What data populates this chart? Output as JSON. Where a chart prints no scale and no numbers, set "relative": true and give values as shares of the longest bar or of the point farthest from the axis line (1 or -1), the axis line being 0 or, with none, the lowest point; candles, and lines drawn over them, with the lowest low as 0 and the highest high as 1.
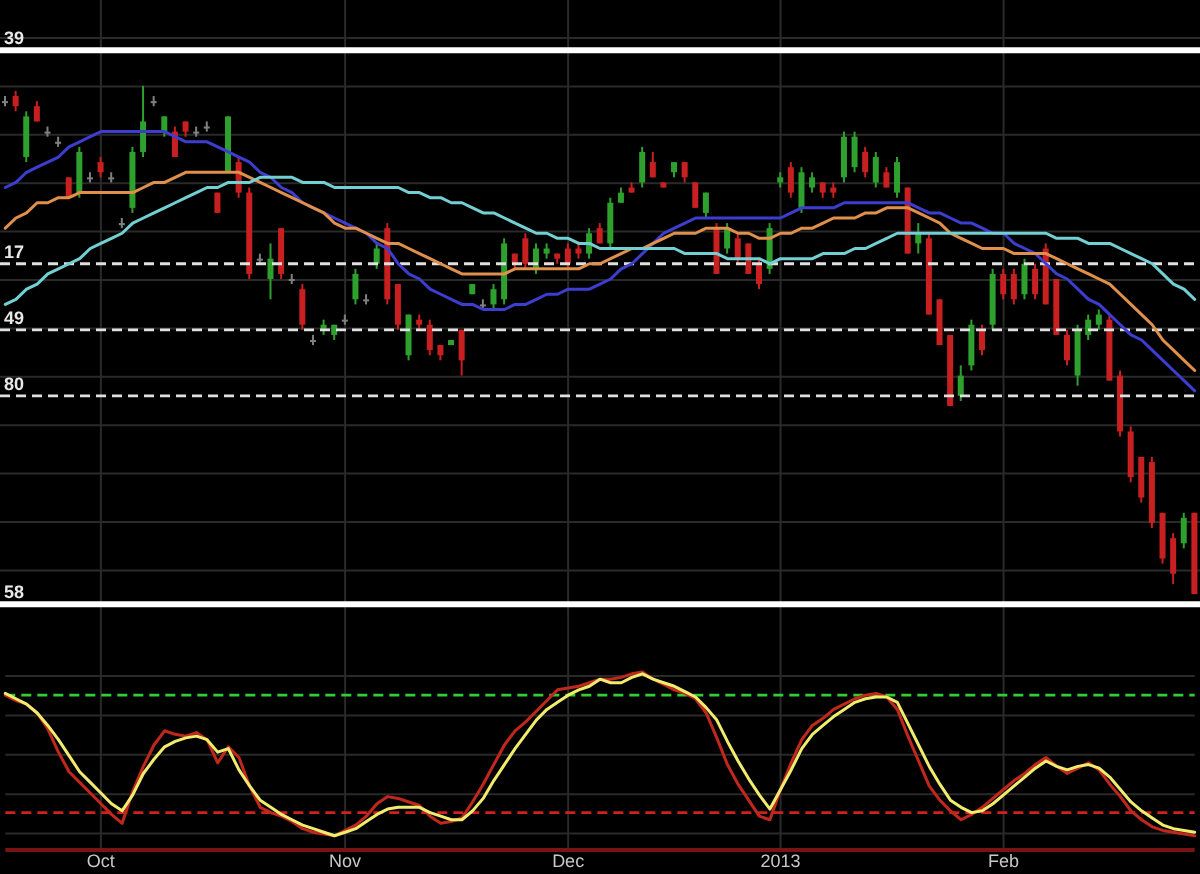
{
  "chart_data": [
    {
      "type": "candlestick",
      "relative": true,
      "grid": true,
      "categories": [
        null,
        null,
        null,
        null,
        null,
        null,
        null,
        null,
        null,
        null,
        null,
        null,
        null,
        null,
        null,
        null,
        null,
        null,
        null,
        null,
        null,
        null,
        null,
        null,
        null,
        null,
        null,
        null,
        null,
        null,
        null,
        null,
        null,
        null,
        null,
        null,
        null,
        null,
        null,
        null,
        null,
        null,
        null,
        null,
        null,
        null,
        null,
        null,
        null,
        null,
        null,
        null,
        null,
        null,
        null,
        null,
        null,
        null,
        null,
        null,
        null,
        null,
        null,
        null,
        null,
        null,
        null,
        null,
        null,
        null,
        null,
        null,
        null,
        null,
        null,
        null,
        null,
        null,
        null,
        null,
        null,
        null,
        null,
        null,
        null,
        null,
        null,
        null,
        null,
        null,
        null,
        null,
        null,
        null,
        null,
        null,
        null,
        null,
        null,
        null,
        null,
        null,
        null,
        null,
        null,
        null,
        null,
        null,
        null,
        null,
        null,
        null,
        null
      ],
      "ohlc": [
        [
          0.97,
          0.98,
          0.96,
          0.97
        ],
        [
          0.98,
          0.99,
          0.95,
          0.96
        ],
        [
          0.86,
          0.95,
          0.85,
          0.94
        ],
        [
          0.96,
          0.97,
          0.93,
          0.93
        ],
        [
          0.91,
          0.92,
          0.9,
          0.91
        ],
        [
          0.89,
          0.9,
          0.88,
          0.89
        ],
        [
          0.82,
          0.82,
          0.78,
          0.78
        ],
        [
          0.79,
          0.88,
          0.78,
          0.87
        ],
        [
          0.82,
          0.83,
          0.81,
          0.82
        ],
        [
          0.85,
          0.86,
          0.82,
          0.83
        ],
        [
          0.82,
          0.83,
          0.81,
          0.82
        ],
        [
          0.73,
          0.74,
          0.72,
          0.73
        ],
        [
          0.76,
          0.88,
          0.75,
          0.87
        ],
        [
          0.87,
          1,
          0.86,
          0.93
        ],
        [
          0.97,
          0.98,
          0.96,
          0.97
        ],
        [
          0.91,
          0.94,
          0.9,
          0.94
        ],
        [
          0.91,
          0.92,
          0.86,
          0.86
        ],
        [
          0.93,
          0.93,
          0.9,
          0.91
        ],
        [
          0.91,
          0.92,
          0.9,
          0.91
        ],
        [
          0.92,
          0.93,
          0.91,
          0.92
        ],
        [
          0.79,
          0.79,
          0.75,
          0.75
        ],
        [
          0.83,
          0.94,
          0.83,
          0.94
        ],
        [
          0.85,
          0.86,
          0.78,
          0.79
        ],
        [
          0.79,
          0.8,
          0.62,
          0.63
        ],
        [
          0.66,
          0.67,
          0.65,
          0.66
        ],
        [
          0.62,
          0.69,
          0.58,
          0.66
        ],
        [
          0.72,
          0.72,
          0.62,
          0.63
        ],
        [
          0.62,
          0.63,
          0.61,
          0.62
        ],
        [
          0.6,
          0.61,
          0.52,
          0.53
        ],
        [
          0.5,
          0.51,
          0.49,
          0.5
        ],
        [
          0.52,
          0.54,
          0.51,
          0.53
        ],
        [
          0.51,
          0.53,
          0.5,
          0.53
        ],
        [
          0.54,
          0.55,
          0.53,
          0.54
        ],
        [
          0.58,
          0.64,
          0.57,
          0.63
        ],
        [
          0.58,
          0.59,
          0.57,
          0.58
        ],
        [
          0.65,
          0.69,
          0.64,
          0.68
        ],
        [
          0.72,
          0.73,
          0.57,
          0.58
        ],
        [
          0.61,
          0.61,
          0.52,
          0.53
        ],
        [
          0.47,
          0.55,
          0.46,
          0.55
        ],
        [
          0.54,
          0.55,
          0.52,
          0.53
        ],
        [
          0.53,
          0.54,
          0.47,
          0.48
        ],
        [
          0.49,
          0.49,
          0.46,
          0.47
        ],
        [
          0.49,
          0.5,
          0.49,
          0.5
        ],
        [
          0.52,
          0.52,
          0.43,
          0.46
        ],
        [
          0.59,
          0.61,
          0.59,
          0.61
        ],
        [
          0.57,
          0.58,
          0.56,
          0.57
        ],
        [
          0.57,
          0.61,
          0.56,
          0.6
        ],
        [
          0.58,
          0.7,
          0.57,
          0.69
        ],
        [
          0.67,
          0.67,
          0.64,
          0.65
        ],
        [
          0.7,
          0.71,
          0.64,
          0.65
        ],
        [
          0.64,
          0.69,
          0.63,
          0.68
        ],
        [
          0.67,
          0.69,
          0.66,
          0.68
        ],
        [
          0.67,
          0.67,
          0.65,
          0.66
        ],
        [
          0.68,
          0.69,
          0.64,
          0.65
        ],
        [
          0.68,
          0.69,
          0.66,
          0.67
        ],
        [
          0.67,
          0.72,
          0.66,
          0.71
        ],
        [
          0.72,
          0.73,
          0.69,
          0.69
        ],
        [
          0.69,
          0.78,
          0.68,
          0.77
        ],
        [
          0.77,
          0.8,
          0.77,
          0.79
        ],
        [
          0.8,
          0.81,
          0.79,
          0.79
        ],
        [
          0.81,
          0.88,
          0.8,
          0.87
        ],
        [
          0.85,
          0.87,
          0.82,
          0.82
        ],
        [
          0.81,
          0.81,
          0.8,
          0.8
        ],
        [
          0.83,
          0.85,
          0.82,
          0.85
        ],
        [
          0.85,
          0.85,
          0.81,
          0.82
        ],
        [
          0.81,
          0.81,
          0.76,
          0.76
        ],
        [
          0.75,
          0.79,
          0.74,
          0.79
        ],
        [
          0.72,
          0.73,
          0.63,
          0.63
        ],
        [
          0.68,
          0.73,
          0.67,
          0.72
        ],
        [
          0.7,
          0.71,
          0.65,
          0.66
        ],
        [
          0.69,
          0.69,
          0.63,
          0.63
        ],
        [
          0.65,
          0.66,
          0.6,
          0.61
        ],
        [
          0.64,
          0.73,
          0.63,
          0.72
        ],
        [
          0.81,
          0.83,
          0.8,
          0.82
        ],
        [
          0.84,
          0.85,
          0.78,
          0.79
        ],
        [
          0.76,
          0.84,
          0.75,
          0.83
        ],
        [
          0.8,
          0.83,
          0.79,
          0.82
        ],
        [
          0.81,
          0.81,
          0.78,
          0.79
        ],
        [
          0.8,
          0.81,
          0.78,
          0.79
        ],
        [
          0.82,
          0.91,
          0.81,
          0.9
        ],
        [
          0.84,
          0.91,
          0.83,
          0.9
        ],
        [
          0.87,
          0.88,
          0.82,
          0.83
        ],
        [
          0.81,
          0.87,
          0.8,
          0.86
        ],
        [
          0.83,
          0.84,
          0.8,
          0.8
        ],
        [
          0.79,
          0.86,
          0.78,
          0.85
        ],
        [
          0.8,
          0.8,
          0.67,
          0.67
        ],
        [
          0.69,
          0.73,
          0.67,
          0.71
        ],
        [
          0.7,
          0.71,
          0.55,
          0.55
        ],
        [
          0.58,
          0.58,
          0.49,
          0.49
        ],
        [
          0.51,
          0.51,
          0.37,
          0.37
        ],
        [
          0.39,
          0.45,
          0.38,
          0.43
        ],
        [
          0.45,
          0.54,
          0.44,
          0.53
        ],
        [
          0.52,
          0.53,
          0.47,
          0.48
        ],
        [
          0.53,
          0.64,
          0.52,
          0.63
        ],
        [
          0.63,
          0.64,
          0.58,
          0.59
        ],
        [
          0.63,
          0.64,
          0.57,
          0.58
        ],
        [
          0.59,
          0.66,
          0.58,
          0.65
        ],
        [
          0.64,
          0.65,
          0.58,
          0.59
        ],
        [
          0.68,
          0.69,
          0.57,
          0.57
        ],
        [
          0.62,
          0.62,
          0.51,
          0.51
        ],
        [
          0.51,
          0.52,
          0.45,
          0.46
        ],
        [
          0.43,
          0.53,
          0.41,
          0.52
        ],
        [
          0.51,
          0.55,
          0.5,
          0.54
        ],
        [
          0.53,
          0.56,
          0.52,
          0.55
        ],
        [
          0.54,
          0.55,
          0.42,
          0.42
        ],
        [
          0.43,
          0.44,
          0.31,
          0.32
        ],
        [
          0.32,
          0.33,
          0.22,
          0.23
        ],
        [
          0.27,
          0.27,
          0.18,
          0.19
        ],
        [
          0.26,
          0.27,
          0.13,
          0.14
        ],
        [
          0.16,
          0.16,
          0.06,
          0.07
        ],
        [
          0.11,
          0.12,
          0.02,
          0.04
        ],
        [
          0.1,
          0.16,
          0.09,
          0.15
        ],
        [
          0.16,
          0.16,
          0,
          0
        ]
      ],
      "colors": [
        "#808080",
        "#c82020",
        "#2ea02e",
        "#c82020",
        "#808080",
        "#808080",
        "#c82020",
        "#2ea02e",
        "#808080",
        "#c82020",
        "#808080",
        "#808080",
        "#2ea02e",
        "#2ea02e",
        "#808080",
        "#2ea02e",
        "#c82020",
        "#c82020",
        "#808080",
        "#808080",
        "#c82020",
        "#2ea02e",
        "#c82020",
        "#c82020",
        "#808080",
        "#2ea02e",
        "#c82020",
        "#808080",
        "#c82020",
        "#808080",
        "#2ea02e",
        "#2ea02e",
        "#808080",
        "#2ea02e",
        "#808080",
        "#2ea02e",
        "#c82020",
        "#c82020",
        "#2ea02e",
        "#c82020",
        "#c82020",
        "#c82020",
        "#2ea02e",
        "#c82020",
        "#2ea02e",
        "#808080",
        "#2ea02e",
        "#2ea02e",
        "#c82020",
        "#c82020",
        "#2ea02e",
        "#2ea02e",
        "#c82020",
        "#c82020",
        "#c82020",
        "#2ea02e",
        "#c82020",
        "#2ea02e",
        "#2ea02e",
        "#c82020",
        "#2ea02e",
        "#c82020",
        "#c82020",
        "#2ea02e",
        "#c82020",
        "#c82020",
        "#2ea02e",
        "#c82020",
        "#2ea02e",
        "#c82020",
        "#c82020",
        "#c82020",
        "#2ea02e",
        "#2ea02e",
        "#c82020",
        "#2ea02e",
        "#2ea02e",
        "#c82020",
        "#c82020",
        "#2ea02e",
        "#2ea02e",
        "#c82020",
        "#2ea02e",
        "#c82020",
        "#2ea02e",
        "#c82020",
        "#2ea02e",
        "#c82020",
        "#c82020",
        "#c82020",
        "#2ea02e",
        "#2ea02e",
        "#c82020",
        "#2ea02e",
        "#c82020",
        "#c82020",
        "#2ea02e",
        "#c82020",
        "#c82020",
        "#c82020",
        "#c82020",
        "#2ea02e",
        "#2ea02e",
        "#2ea02e",
        "#c82020",
        "#c82020",
        "#c82020",
        "#c82020",
        "#c82020",
        "#c82020",
        "#c82020",
        "#2ea02e",
        "#c82020"
      ],
      "series": [
        {
          "type": "line",
          "color": "#3d3dd0",
          "values": [
            0.8,
            0.81,
            0.83,
            0.84,
            0.85,
            0.86,
            0.88,
            0.89,
            0.9,
            0.91,
            0.91,
            0.91,
            0.91,
            0.91,
            0.91,
            0.91,
            0.9,
            0.89,
            0.89,
            0.89,
            0.88,
            0.87,
            0.86,
            0.85,
            0.83,
            0.82,
            0.8,
            0.79,
            0.77,
            0.76,
            0.75,
            0.74,
            0.73,
            0.72,
            0.71,
            0.69,
            0.68,
            0.65,
            0.63,
            0.62,
            0.6,
            0.59,
            0.58,
            0.57,
            0.57,
            0.56,
            0.56,
            0.56,
            0.57,
            0.57,
            0.58,
            0.59,
            0.59,
            0.6,
            0.6,
            0.6,
            0.61,
            0.62,
            0.64,
            0.65,
            0.67,
            0.69,
            0.71,
            0.72,
            0.73,
            0.74,
            0.74,
            0.74,
            0.74,
            0.74,
            0.74,
            0.74,
            0.74,
            0.74,
            0.75,
            0.76,
            0.76,
            0.76,
            0.76,
            0.77,
            0.77,
            0.77,
            0.77,
            0.77,
            0.77,
            0.77,
            0.76,
            0.75,
            0.75,
            0.74,
            0.73,
            0.73,
            0.72,
            0.71,
            0.71,
            0.69,
            0.68,
            0.67,
            0.65,
            0.63,
            0.62,
            0.6,
            0.58,
            0.57,
            0.55,
            0.53,
            0.51,
            0.5,
            0.48,
            0.46,
            0.44,
            0.42,
            0.4
          ]
        },
        {
          "type": "line",
          "color": "#e0904a",
          "values": [
            0.72,
            0.74,
            0.75,
            0.77,
            0.77,
            0.78,
            0.78,
            0.79,
            0.79,
            0.79,
            0.79,
            0.79,
            0.79,
            0.8,
            0.81,
            0.81,
            0.82,
            0.83,
            0.83,
            0.83,
            0.83,
            0.83,
            0.83,
            0.82,
            0.81,
            0.8,
            0.79,
            0.78,
            0.77,
            0.76,
            0.75,
            0.73,
            0.72,
            0.72,
            0.71,
            0.7,
            0.69,
            0.69,
            0.68,
            0.67,
            0.66,
            0.65,
            0.64,
            0.63,
            0.63,
            0.63,
            0.63,
            0.63,
            0.64,
            0.64,
            0.64,
            0.64,
            0.64,
            0.64,
            0.64,
            0.65,
            0.65,
            0.66,
            0.67,
            0.68,
            0.68,
            0.69,
            0.7,
            0.71,
            0.71,
            0.71,
            0.72,
            0.72,
            0.72,
            0.71,
            0.71,
            0.7,
            0.7,
            0.71,
            0.71,
            0.72,
            0.72,
            0.73,
            0.74,
            0.74,
            0.74,
            0.75,
            0.75,
            0.76,
            0.76,
            0.76,
            0.75,
            0.74,
            0.73,
            0.71,
            0.7,
            0.69,
            0.68,
            0.68,
            0.68,
            0.67,
            0.67,
            0.67,
            0.67,
            0.66,
            0.65,
            0.64,
            0.63,
            0.62,
            0.61,
            0.59,
            0.57,
            0.55,
            0.53,
            0.5,
            0.48,
            0.46,
            0.44
          ]
        },
        {
          "type": "line",
          "color": "#72cfd2",
          "values": [
            0.57,
            0.58,
            0.6,
            0.61,
            0.63,
            0.64,
            0.65,
            0.66,
            0.68,
            0.69,
            0.7,
            0.71,
            0.73,
            0.74,
            0.75,
            0.76,
            0.77,
            0.78,
            0.79,
            0.8,
            0.8,
            0.81,
            0.81,
            0.81,
            0.82,
            0.82,
            0.82,
            0.82,
            0.81,
            0.81,
            0.81,
            0.8,
            0.8,
            0.8,
            0.8,
            0.8,
            0.8,
            0.8,
            0.79,
            0.79,
            0.78,
            0.78,
            0.77,
            0.77,
            0.76,
            0.75,
            0.75,
            0.74,
            0.73,
            0.72,
            0.71,
            0.71,
            0.7,
            0.7,
            0.69,
            0.69,
            0.68,
            0.68,
            0.68,
            0.68,
            0.68,
            0.68,
            0.68,
            0.68,
            0.67,
            0.67,
            0.67,
            0.67,
            0.66,
            0.66,
            0.66,
            0.66,
            0.65,
            0.66,
            0.66,
            0.66,
            0.66,
            0.67,
            0.67,
            0.67,
            0.68,
            0.68,
            0.69,
            0.7,
            0.71,
            0.71,
            0.71,
            0.71,
            0.71,
            0.71,
            0.71,
            0.71,
            0.71,
            0.71,
            0.71,
            0.71,
            0.71,
            0.71,
            0.71,
            0.7,
            0.7,
            0.7,
            0.69,
            0.69,
            0.69,
            0.68,
            0.67,
            0.66,
            0.65,
            0.63,
            0.61,
            0.6,
            0.58
          ]
        }
      ],
      "ref_lines": [
        {
          "axis": "y",
          "value": 1.07,
          "color": "#ffffff",
          "line_style": "solid"
        },
        {
          "axis": "y",
          "value": 0.65,
          "color": "#e0e0e0",
          "line_style": "dashed"
        },
        {
          "axis": "y",
          "value": 0.52,
          "color": "#e0e0e0",
          "line_style": "dashed"
        },
        {
          "axis": "y",
          "value": 0.39,
          "color": "#e0e0e0",
          "line_style": "dashed"
        },
        {
          "axis": "y",
          "value": -0.02,
          "color": "#ffffff",
          "line_style": "solid"
        }
      ],
      "annotations": [
        "39",
        "17",
        "49",
        "80",
        "58"
      ]
    },
    {
      "type": "line",
      "relative": true,
      "grid": true,
      "categories": [
        null,
        null,
        null,
        null,
        null,
        null,
        null,
        null,
        null,
        "Oct",
        null,
        null,
        null,
        null,
        null,
        null,
        null,
        null,
        null,
        null,
        null,
        null,
        null,
        null,
        null,
        null,
        null,
        null,
        null,
        null,
        null,
        null,
        "Nov",
        null,
        null,
        null,
        null,
        null,
        null,
        null,
        null,
        null,
        null,
        null,
        null,
        null,
        null,
        null,
        null,
        null,
        null,
        null,
        null,
        "Dec",
        null,
        null,
        null,
        null,
        null,
        null,
        null,
        null,
        null,
        null,
        null,
        null,
        null,
        null,
        null,
        null,
        null,
        null,
        null,
        "2013",
        null,
        null,
        null,
        null,
        null,
        null,
        null,
        null,
        null,
        null,
        null,
        null,
        null,
        null,
        null,
        null,
        null,
        null,
        null,
        null,
        "Feb",
        null,
        null,
        null,
        null,
        null,
        null,
        null,
        null,
        null,
        null,
        null,
        null,
        null,
        null,
        null,
        null,
        null,
        null
      ],
      "series": [
        {
          "color": "#c0281e",
          "values": [
            0.87,
            0.84,
            0.82,
            0.77,
            0.68,
            0.55,
            0.44,
            0.38,
            0.32,
            0.26,
            0.2,
            0.15,
            0.33,
            0.47,
            0.59,
            0.67,
            0.65,
            0.64,
            0.66,
            0.62,
            0.49,
            0.58,
            0.52,
            0.36,
            0.24,
            0.21,
            0.19,
            0.16,
            0.12,
            0.1,
            0.09,
            0.08,
            0.11,
            0.14,
            0.19,
            0.26,
            0.3,
            0.29,
            0.27,
            0.25,
            0.19,
            0.15,
            0.16,
            0.18,
            0.27,
            0.37,
            0.48,
            0.59,
            0.67,
            0.72,
            0.78,
            0.84,
            0.9,
            0.91,
            0.92,
            0.94,
            0.96,
            0.96,
            0.97,
            0.99,
            1,
            0.96,
            0.93,
            0.9,
            0.88,
            0.85,
            0.77,
            0.63,
            0.48,
            0.37,
            0.28,
            0.19,
            0.17,
            0.34,
            0.49,
            0.62,
            0.7,
            0.74,
            0.79,
            0.82,
            0.85,
            0.87,
            0.88,
            0.86,
            0.79,
            0.64,
            0.5,
            0.36,
            0.28,
            0.22,
            0.17,
            0.2,
            0.24,
            0.29,
            0.34,
            0.39,
            0.43,
            0.48,
            0.52,
            0.47,
            0.43,
            0.46,
            0.49,
            0.45,
            0.37,
            0.3,
            0.22,
            0.17,
            0.13,
            0.11,
            0.1,
            0.09,
            0.08
          ]
        },
        {
          "color": "#f0ec6e",
          "values": [
            0.88,
            0.85,
            0.82,
            0.77,
            0.7,
            0.62,
            0.53,
            0.44,
            0.38,
            0.32,
            0.26,
            0.22,
            0.31,
            0.43,
            0.51,
            0.58,
            0.61,
            0.63,
            0.64,
            0.62,
            0.55,
            0.57,
            0.45,
            0.36,
            0.28,
            0.24,
            0.2,
            0.17,
            0.14,
            0.12,
            0.1,
            0.08,
            0.1,
            0.12,
            0.16,
            0.2,
            0.23,
            0.24,
            0.24,
            0.24,
            0.21,
            0.19,
            0.17,
            0.17,
            0.22,
            0.29,
            0.39,
            0.48,
            0.57,
            0.65,
            0.73,
            0.79,
            0.83,
            0.87,
            0.9,
            0.92,
            0.96,
            0.94,
            0.94,
            0.97,
            0.99,
            0.96,
            0.94,
            0.92,
            0.89,
            0.86,
            0.8,
            0.73,
            0.61,
            0.5,
            0.4,
            0.31,
            0.23,
            0.34,
            0.45,
            0.57,
            0.65,
            0.7,
            0.75,
            0.79,
            0.83,
            0.85,
            0.86,
            0.86,
            0.83,
            0.71,
            0.59,
            0.47,
            0.37,
            0.28,
            0.24,
            0.21,
            0.22,
            0.26,
            0.31,
            0.36,
            0.41,
            0.46,
            0.5,
            0.47,
            0.45,
            0.47,
            0.48,
            0.46,
            0.41,
            0.34,
            0.27,
            0.22,
            0.18,
            0.14,
            0.12,
            0.11,
            0.1
          ]
        }
      ],
      "ref_lines": [
        {
          "axis": "y",
          "value": 0.87,
          "color": "#33cc33",
          "line_style": "dashed"
        },
        {
          "axis": "y",
          "value": 0.21,
          "color": "#d02020",
          "line_style": "dashed"
        }
      ]
    }
  ]
}
